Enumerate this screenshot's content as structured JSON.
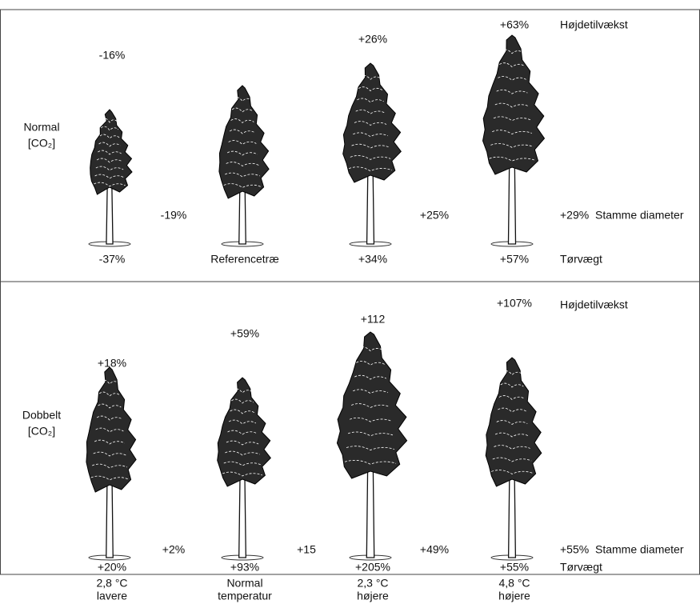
{
  "panels": [
    {
      "row_label": [
        "Normal",
        "[CO₂]"
      ],
      "legend": {
        "height": "Højdetilvækst",
        "diameter": "Stamme diameter",
        "dry_weight": "Tørvægt"
      },
      "trees": [
        {
          "height": "-16%",
          "diameter": "-19%",
          "dry_weight": "-37%"
        },
        {
          "dry_weight": "Referencetræ"
        },
        {
          "height": "+26%",
          "diameter": "+25%",
          "dry_weight": "+34%"
        },
        {
          "height": "+63%",
          "diameter": "+29%",
          "dry_weight": "+57%"
        }
      ]
    },
    {
      "row_label": [
        "Dobbelt",
        "[CO₂]"
      ],
      "legend": {
        "height": "Højdetilvækst",
        "diameter": "Stamme diameter",
        "dry_weight": "Tørvægt"
      },
      "trees": [
        {
          "height": "+18%",
          "diameter": "+2%",
          "dry_weight": "+20%"
        },
        {
          "height": "+59%",
          "diameter": "+15",
          "dry_weight": "+93%"
        },
        {
          "height": "+112",
          "diameter": "+49%",
          "dry_weight": "+205%"
        },
        {
          "height": "+107%",
          "diameter": "+55%",
          "dry_weight": "+55%"
        }
      ]
    }
  ],
  "columns": [
    [
      "2,8 °C",
      "lavere"
    ],
    [
      "Normal",
      "temperatur"
    ],
    [
      "2,3 °C",
      "højere"
    ],
    [
      "4,8 °C",
      "højere"
    ]
  ]
}
